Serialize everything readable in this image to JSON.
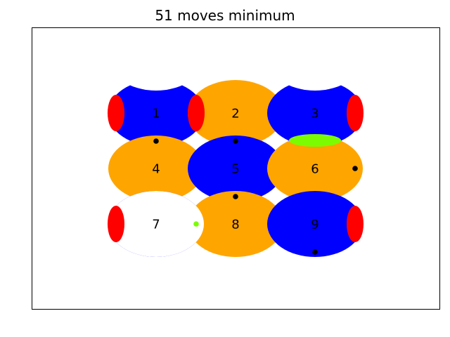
{
  "title": "51 moves minimum",
  "palette": {
    "blue": "#0000ff",
    "orange": "#ffa500",
    "red": "#ff0000",
    "green": "#7cfc00",
    "black": "#000000",
    "white": "#ffffff"
  },
  "pieces": [
    {
      "label": "1",
      "row": 0,
      "col": 0,
      "color": "blue",
      "notch_top": true,
      "notch_bottom": false,
      "caps": [
        "left",
        "right"
      ],
      "marker": {
        "color": "black",
        "side": "bottom"
      }
    },
    {
      "label": "2",
      "row": 0,
      "col": 1,
      "color": "orange",
      "notch_top": false,
      "notch_bottom": false,
      "caps": [],
      "marker": {
        "color": "black",
        "side": "bottom"
      }
    },
    {
      "label": "3",
      "row": 0,
      "col": 2,
      "color": "blue",
      "notch_top": true,
      "notch_bottom": false,
      "caps": [
        "right"
      ],
      "marker": null
    },
    {
      "label": "4",
      "row": 1,
      "col": 0,
      "color": "orange",
      "notch_top": false,
      "notch_bottom": true,
      "caps": [],
      "marker": null
    },
    {
      "label": "5",
      "row": 1,
      "col": 1,
      "color": "blue",
      "notch_top": false,
      "notch_bottom": false,
      "caps": [],
      "marker": {
        "color": "black",
        "side": "bottom"
      }
    },
    {
      "label": "6",
      "row": 1,
      "col": 2,
      "color": "orange",
      "notch_top": false,
      "notch_bottom": false,
      "caps": [
        "top-green"
      ],
      "marker": {
        "color": "black",
        "side": "right"
      }
    },
    {
      "label": "7",
      "row": 2,
      "col": 0,
      "color": "blue",
      "notch_top": false,
      "notch_bottom": false,
      "caps": [
        "left"
      ],
      "marker": {
        "color": "green",
        "side": "right"
      }
    },
    {
      "label": "8",
      "row": 2,
      "col": 1,
      "color": "orange",
      "notch_top": false,
      "notch_bottom": false,
      "caps": [],
      "marker": null
    },
    {
      "label": "9",
      "row": 2,
      "col": 2,
      "color": "blue",
      "notch_top": false,
      "notch_bottom": false,
      "caps": [
        "right"
      ],
      "marker": {
        "color": "black",
        "side": "bottom"
      }
    }
  ]
}
